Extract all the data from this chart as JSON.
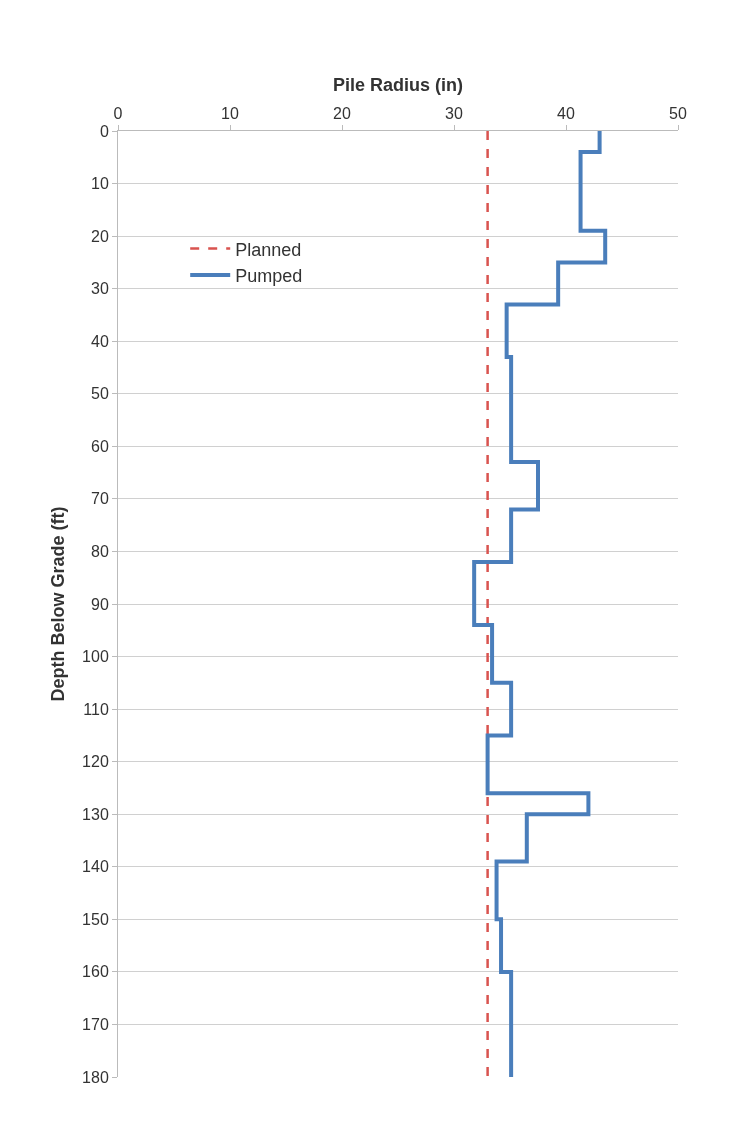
{
  "chart_data": {
    "type": "line",
    "xlabel": "Pile Radius (in)",
    "ylabel": "Depth Below Grade (ft)",
    "xlim": [
      0,
      50
    ],
    "xticks": [
      0,
      10,
      20,
      30,
      40,
      50
    ],
    "ylim": [
      180,
      0
    ],
    "yticks": [
      0,
      10,
      20,
      30,
      40,
      50,
      60,
      70,
      80,
      90,
      100,
      110,
      120,
      130,
      140,
      150,
      160,
      170,
      180
    ],
    "grid": "y",
    "legend": "top left",
    "marker": "none",
    "series": [
      {
        "name": "Planned",
        "color": "#d9534f",
        "line_style": "dashed",
        "x": [
          33,
          33
        ],
        "values": [
          0,
          180
        ]
      },
      {
        "name": "Pumped",
        "color": "#4a7ebb",
        "line_style": "solid",
        "x": [
          43,
          43,
          41.3,
          41.3,
          43.5,
          43.5,
          39.3,
          39.3,
          34.7,
          34.7,
          35.1,
          35.1,
          37.5,
          37.5,
          35.1,
          35.1,
          31.8,
          31.8,
          33.4,
          33.4,
          35.1,
          35.1,
          33,
          33,
          42,
          42,
          36.5,
          36.5,
          33.8,
          33.8,
          34.2,
          34.2,
          35.1,
          35.1
        ],
        "values": [
          0,
          4,
          4,
          19,
          19,
          25,
          25,
          33,
          33,
          43,
          43,
          63,
          63,
          72,
          72,
          82,
          82,
          94,
          94,
          105,
          105,
          115,
          115,
          126,
          126,
          130,
          130,
          139,
          139,
          150,
          150,
          160,
          160,
          180
        ]
      }
    ]
  }
}
